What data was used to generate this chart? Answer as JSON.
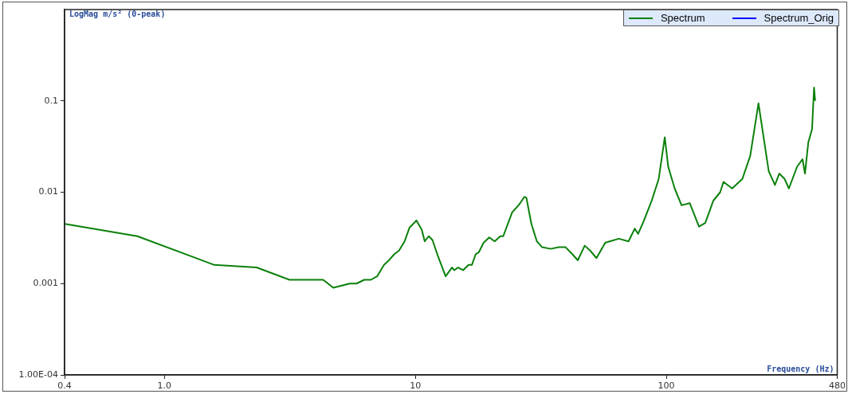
{
  "chart_data": {
    "type": "line",
    "xlabel": "Frequency (Hz)",
    "ylabel": "LogMag m/s² (0-peak)",
    "log": "xy",
    "xlim": [
      0.4,
      480
    ],
    "ylim": [
      0.0001,
      1
    ],
    "xticks": [
      0.4,
      {
        "value": 1,
        "label": "1.0"
      },
      10,
      100,
      480
    ],
    "yticks": [
      {
        "value": 0.0001,
        "label": "1.00E-04"
      },
      0.001,
      0.01,
      0.1
    ],
    "grid": false,
    "legend": "top right",
    "marker": "none",
    "line_style": "solid",
    "series": [
      {
        "name": "Spectrum",
        "color": "#0a800a",
        "x": [
          0.4,
          0.78,
          1.58,
          2.33,
          3.15,
          3.53,
          3.95,
          4.29,
          4.71,
          5.48,
          5.83,
          6.26,
          6.65,
          7.04,
          7.5,
          7.85,
          8.25,
          8.61,
          9.06,
          9.48,
          10.1,
          10.6,
          10.9,
          11.3,
          11.7,
          12.3,
          13.2,
          14.0,
          14.3,
          14.8,
          15.5,
          16.3,
          16.8,
          17.4,
          17.9,
          18.7,
          19.7,
          20.7,
          21.8,
          22.4,
          24.3,
          25.9,
          27.2,
          27.7,
          29.0,
          30.5,
          32.0,
          34.6,
          37.3,
          39.7,
          42.2,
          44.4,
          47.3,
          49.7,
          52.7,
          57.1,
          64.7,
          70.7,
          74.9,
          77.2,
          81.2,
          87.5,
          93.3,
          98.6,
          101.8,
          108,
          115,
          124,
          135,
          143,
          154,
          164,
          169,
          183,
          201,
          216,
          233,
          256,
          271,
          282,
          296,
          308,
          332,
          349,
          357,
          368,
          381,
          388,
          392
        ],
        "values": [
          0.0045,
          0.0033,
          0.0016,
          0.0015,
          0.0011,
          0.0011,
          0.0011,
          0.0011,
          0.0009,
          0.001,
          0.001,
          0.0011,
          0.0011,
          0.0012,
          0.0016,
          0.0018,
          0.0021,
          0.0023,
          0.0029,
          0.0041,
          0.0049,
          0.0039,
          0.0029,
          0.0033,
          0.003,
          0.002,
          0.0012,
          0.0015,
          0.0014,
          0.0015,
          0.0014,
          0.0016,
          0.0016,
          0.0021,
          0.0022,
          0.0028,
          0.0032,
          0.0029,
          0.0033,
          0.0033,
          0.006,
          0.0073,
          0.0089,
          0.0087,
          0.0045,
          0.0029,
          0.0025,
          0.0024,
          0.0025,
          0.0025,
          0.0021,
          0.0018,
          0.0026,
          0.0023,
          0.0019,
          0.0028,
          0.0031,
          0.0029,
          0.004,
          0.0035,
          0.0048,
          0.0081,
          0.014,
          0.04,
          0.019,
          0.011,
          0.0072,
          0.0076,
          0.0042,
          0.0046,
          0.0081,
          0.01,
          0.013,
          0.011,
          0.014,
          0.025,
          0.094,
          0.017,
          0.012,
          0.016,
          0.014,
          0.011,
          0.019,
          0.023,
          0.016,
          0.035,
          0.049,
          0.14,
          0.1
        ]
      },
      {
        "name": "Spectrum_Orig",
        "color": "#0000ff"
      }
    ]
  }
}
